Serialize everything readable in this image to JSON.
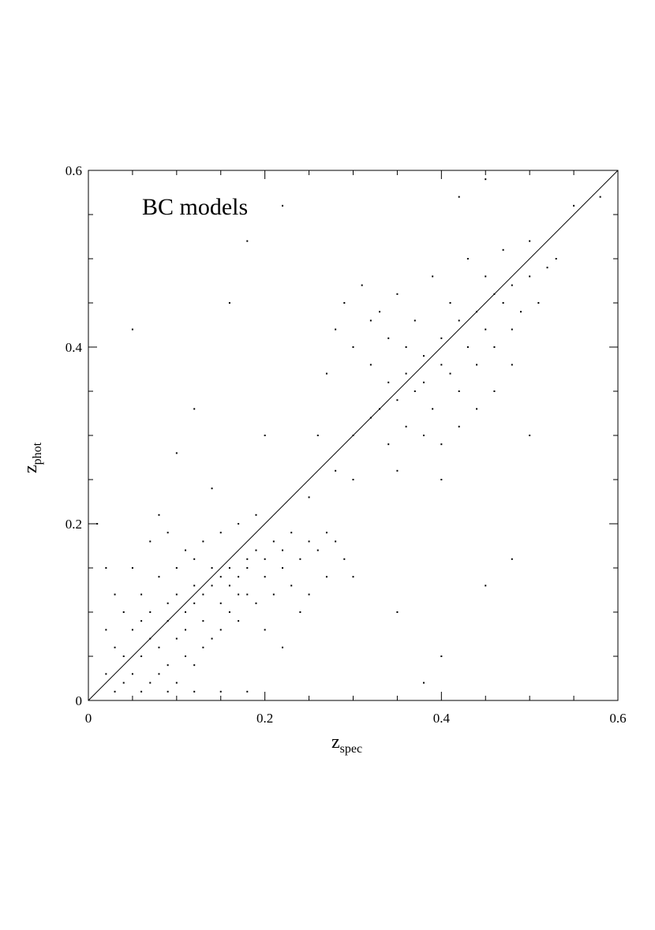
{
  "chart_data": {
    "type": "scatter",
    "annotation": "BC models",
    "xlabel": "z",
    "xlabel_sub": "spec",
    "ylabel": "z",
    "ylabel_sub": "phot",
    "xlim": [
      0,
      0.6
    ],
    "ylim": [
      0,
      0.6
    ],
    "xticks": [
      0,
      0.2,
      0.4,
      0.6
    ],
    "yticks": [
      0,
      0.2,
      0.4,
      0.6
    ],
    "xminorticks": [
      0.05,
      0.1,
      0.15,
      0.25,
      0.3,
      0.35,
      0.45,
      0.5,
      0.55
    ],
    "yminorticks": [
      0.05,
      0.1,
      0.15,
      0.25,
      0.3,
      0.35,
      0.45,
      0.5,
      0.55
    ],
    "diagonal": true,
    "color": "#000000",
    "x": [
      0.02,
      0.03,
      0.04,
      0.05,
      0.06,
      0.07,
      0.08,
      0.09,
      0.1,
      0.11,
      0.12,
      0.13,
      0.14,
      0.15,
      0.16,
      0.17,
      0.18,
      0.19,
      0.2,
      0.21,
      0.22,
      0.23,
      0.25,
      0.27,
      0.04,
      0.06,
      0.08,
      0.1,
      0.12,
      0.03,
      0.05,
      0.07,
      0.09,
      0.11,
      0.13,
      0.15,
      0.17,
      0.19,
      0.21,
      0.23,
      0.08,
      0.1,
      0.12,
      0.14,
      0.16,
      0.18,
      0.06,
      0.09,
      0.11,
      0.13,
      0.15,
      0.17,
      0.02,
      0.04,
      0.07,
      0.1,
      0.12,
      0.14,
      0.16,
      0.18,
      0.2,
      0.22,
      0.24,
      0.26,
      0.28,
      0.05,
      0.07,
      0.09,
      0.11,
      0.13,
      0.15,
      0.17,
      0.19,
      0.25,
      0.27,
      0.29,
      0.03,
      0.06,
      0.09,
      0.12,
      0.15,
      0.18,
      0.02,
      0.01,
      0.08,
      0.2,
      0.22,
      0.24,
      0.28,
      0.3,
      0.32,
      0.34,
      0.36,
      0.38,
      0.4,
      0.42,
      0.44,
      0.46,
      0.48,
      0.5,
      0.52,
      0.33,
      0.35,
      0.37,
      0.39,
      0.41,
      0.43,
      0.45,
      0.47,
      0.49,
      0.3,
      0.32,
      0.34,
      0.36,
      0.38,
      0.4,
      0.42,
      0.44,
      0.46,
      0.48,
      0.29,
      0.31,
      0.33,
      0.35,
      0.37,
      0.39,
      0.41,
      0.43,
      0.45,
      0.47,
      0.5,
      0.53,
      0.36,
      0.34,
      0.32,
      0.38,
      0.4,
      0.42,
      0.44,
      0.46,
      0.48,
      0.51,
      0.27,
      0.26,
      0.28,
      0.3,
      0.35,
      0.4,
      0.05,
      0.12,
      0.16,
      0.18,
      0.22,
      0.2,
      0.25,
      0.3,
      0.35,
      0.4,
      0.45,
      0.48,
      0.55,
      0.58,
      0.45,
      0.5,
      0.42,
      0.38,
      0.1,
      0.14
    ],
    "y": [
      0.03,
      0.06,
      0.02,
      0.08,
      0.05,
      0.07,
      0.06,
      0.09,
      0.07,
      0.1,
      0.11,
      0.12,
      0.13,
      0.14,
      0.15,
      0.14,
      0.16,
      0.17,
      0.16,
      0.18,
      0.17,
      0.19,
      0.18,
      0.19,
      0.1,
      0.12,
      0.14,
      0.15,
      0.16,
      0.12,
      0.03,
      0.02,
      0.04,
      0.05,
      0.06,
      0.08,
      0.09,
      0.11,
      0.12,
      0.13,
      0.03,
      0.02,
      0.04,
      0.07,
      0.1,
      0.12,
      0.09,
      0.11,
      0.08,
      0.09,
      0.11,
      0.12,
      0.08,
      0.05,
      0.1,
      0.12,
      0.13,
      0.15,
      0.13,
      0.15,
      0.14,
      0.15,
      0.16,
      0.17,
      0.18,
      0.15,
      0.18,
      0.19,
      0.17,
      0.18,
      0.19,
      0.2,
      0.21,
      0.12,
      0.14,
      0.16,
      0.01,
      0.01,
      0.01,
      0.01,
      0.01,
      0.01,
      0.15,
      0.2,
      0.21,
      0.08,
      0.06,
      0.1,
      0.42,
      0.4,
      0.38,
      0.36,
      0.37,
      0.39,
      0.41,
      0.43,
      0.44,
      0.46,
      0.47,
      0.48,
      0.49,
      0.33,
      0.34,
      0.35,
      0.33,
      0.37,
      0.4,
      0.42,
      0.45,
      0.44,
      0.3,
      0.32,
      0.29,
      0.31,
      0.3,
      0.29,
      0.31,
      0.33,
      0.35,
      0.38,
      0.45,
      0.47,
      0.44,
      0.46,
      0.43,
      0.48,
      0.45,
      0.5,
      0.48,
      0.51,
      0.52,
      0.5,
      0.4,
      0.41,
      0.43,
      0.36,
      0.38,
      0.35,
      0.38,
      0.4,
      0.42,
      0.45,
      0.37,
      0.3,
      0.26,
      0.25,
      0.26,
      0.25,
      0.42,
      0.33,
      0.45,
      0.52,
      0.56,
      0.3,
      0.23,
      0.14,
      0.1,
      0.05,
      0.13,
      0.16,
      0.56,
      0.57,
      0.59,
      0.3,
      0.57,
      0.02,
      0.28,
      0.24
    ]
  }
}
